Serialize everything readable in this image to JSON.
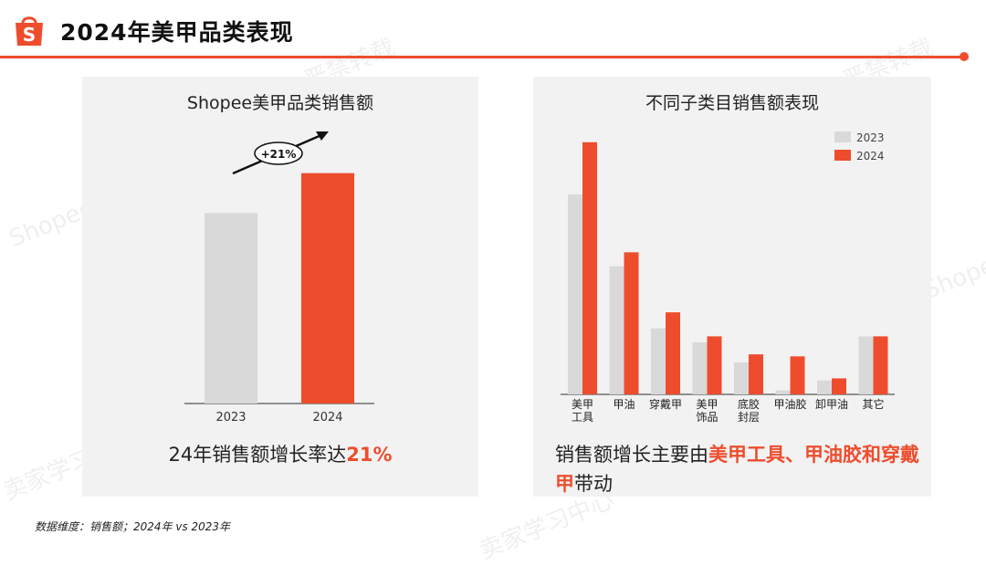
{
  "header": {
    "title": "2024年美甲品类表现",
    "logo_icon": "shopee-bag-icon"
  },
  "colors": {
    "accent": "#ee4d2d",
    "bar_2023": "#d9d9d9",
    "bar_2024": "#ee4d2d"
  },
  "left_panel": {
    "title": "Shopee美甲品类销售额",
    "growth_badge": "+21%",
    "caption_prefix": "24年销售额增长率达",
    "caption_highlight": "21%"
  },
  "right_panel": {
    "title": "不同子类目销售额表现",
    "caption_prefix": "销售额增长主要由",
    "caption_highlight": "美甲工具、甲油胶和穿戴甲",
    "caption_suffix": "带动"
  },
  "chart_data": [
    {
      "type": "bar",
      "title": "Shopee美甲品类销售额",
      "categories": [
        "2023",
        "2024"
      ],
      "values": [
        100,
        121
      ],
      "ylim": [
        0,
        140
      ],
      "grid": false,
      "annotation": "+21%"
    },
    {
      "type": "bar",
      "title": "不同子类目销售额表现",
      "categories": [
        "美甲\n工具",
        "甲油",
        "穿戴甲",
        "美甲\n饰品",
        "底胶\n封层",
        "甲油胶",
        "卸甲油",
        "其它"
      ],
      "series": [
        {
          "name": "2023",
          "values": [
            100,
            64,
            33,
            26,
            16,
            2,
            7,
            29
          ]
        },
        {
          "name": "2024",
          "values": [
            126,
            71,
            41,
            29,
            20,
            19,
            8,
            29
          ]
        }
      ],
      "ylim": [
        0,
        130
      ],
      "grid": false,
      "legend": "top-right"
    }
  ],
  "footnote": "数据维度：销售额；2024年 vs 2023年"
}
